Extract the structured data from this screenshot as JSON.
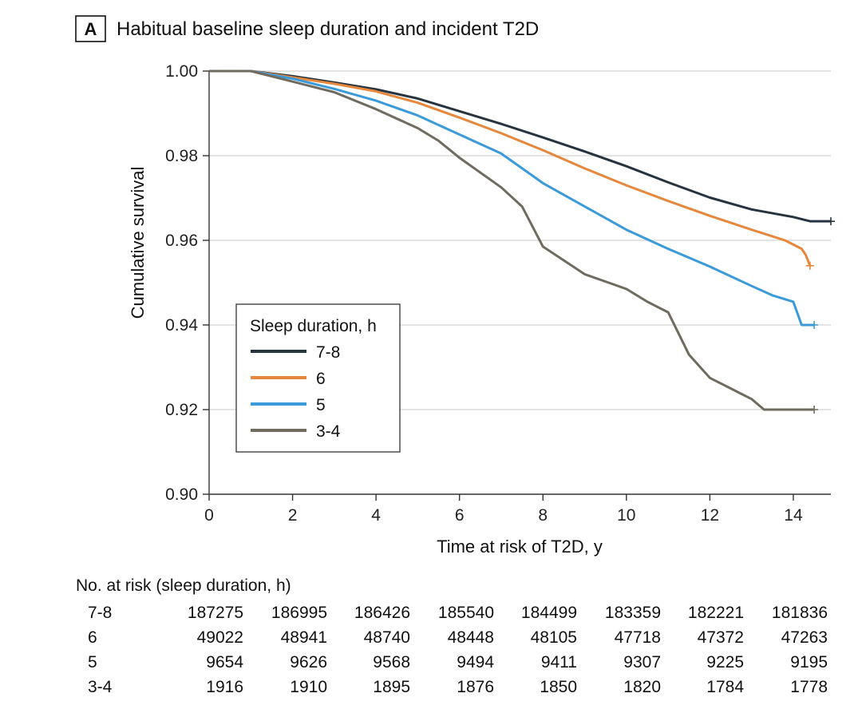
{
  "panel_label": "A",
  "chart_data": {
    "type": "line",
    "title": "Habitual baseline sleep duration and incident T2D",
    "xlabel": "Time at risk of T2D, y",
    "ylabel": "Cumulative survival",
    "xlim": [
      0,
      14.9
    ],
    "ylim": [
      0.9,
      1.0
    ],
    "xticks": [
      0,
      2,
      4,
      6,
      8,
      10,
      12,
      14
    ],
    "yticks": [
      0.9,
      0.92,
      0.94,
      0.96,
      0.98,
      1.0
    ],
    "ytick_labels": [
      "0.90",
      "0.92",
      "0.94",
      "0.96",
      "0.98",
      "1.00"
    ],
    "grid": "horizontal",
    "legend": {
      "title": "Sleep duration, h",
      "placement": "lower-left"
    },
    "series": [
      {
        "name": "7-8",
        "color": "#263440",
        "x": [
          0,
          1,
          2,
          3,
          4,
          5,
          6,
          7,
          8,
          9,
          10,
          11,
          12,
          13,
          14,
          14.4,
          14.9
        ],
        "y": [
          1.0,
          1.0,
          0.9988,
          0.9973,
          0.9957,
          0.9935,
          0.9905,
          0.9875,
          0.9843,
          0.981,
          0.9775,
          0.9737,
          0.9701,
          0.9673,
          0.9655,
          0.9645,
          0.9645
        ]
      },
      {
        "name": "6",
        "color": "#e5883d",
        "x": [
          0,
          1,
          2,
          3,
          4,
          5,
          6,
          7,
          8,
          9,
          10,
          11,
          12,
          13,
          13.8,
          14.2,
          14.3,
          14.4
        ],
        "y": [
          1.0,
          1.0,
          0.9985,
          0.997,
          0.9952,
          0.9925,
          0.989,
          0.9853,
          0.9813,
          0.977,
          0.973,
          0.9693,
          0.9658,
          0.9625,
          0.96,
          0.958,
          0.9565,
          0.954
        ]
      },
      {
        "name": "5",
        "color": "#3b9ad9",
        "x": [
          0,
          1,
          2,
          3,
          4,
          5,
          6,
          7,
          8,
          9,
          10,
          11,
          12,
          13,
          13.5,
          14.0,
          14.2,
          14.5
        ],
        "y": [
          1.0,
          1.0,
          0.9982,
          0.9958,
          0.993,
          0.9895,
          0.985,
          0.9805,
          0.9735,
          0.968,
          0.9625,
          0.958,
          0.9538,
          0.9492,
          0.947,
          0.9455,
          0.94,
          0.94
        ]
      },
      {
        "name": "3-4",
        "color": "#706b5f",
        "x": [
          0,
          1,
          2,
          3,
          4,
          5,
          5.5,
          6,
          7,
          7.5,
          8,
          9,
          10,
          10.5,
          11,
          11.5,
          12,
          12.5,
          13,
          13.3,
          14,
          14.5
        ],
        "y": [
          1.0,
          1.0,
          0.9975,
          0.995,
          0.991,
          0.9865,
          0.9835,
          0.9795,
          0.9725,
          0.968,
          0.9585,
          0.952,
          0.9485,
          0.9455,
          0.943,
          0.933,
          0.9275,
          0.925,
          0.9225,
          0.92,
          0.92,
          0.92
        ]
      }
    ],
    "risk_table": {
      "title": "No. at risk (sleep duration, h)",
      "rows": [
        {
          "label": "7-8",
          "values": [
            "187275",
            "186995",
            "186426",
            "185540",
            "184499",
            "183359",
            "182221",
            "181836"
          ]
        },
        {
          "label": "6",
          "values": [
            "49022",
            "48941",
            "48740",
            "48448",
            "48105",
            "47718",
            "47372",
            "47263"
          ]
        },
        {
          "label": "5",
          "values": [
            "9654",
            "9626",
            "9568",
            "9494",
            "9411",
            "9307",
            "9225",
            "9195"
          ]
        },
        {
          "label": "3-4",
          "values": [
            "1916",
            "1910",
            "1895",
            "1876",
            "1850",
            "1820",
            "1784",
            "1778"
          ]
        }
      ]
    }
  }
}
